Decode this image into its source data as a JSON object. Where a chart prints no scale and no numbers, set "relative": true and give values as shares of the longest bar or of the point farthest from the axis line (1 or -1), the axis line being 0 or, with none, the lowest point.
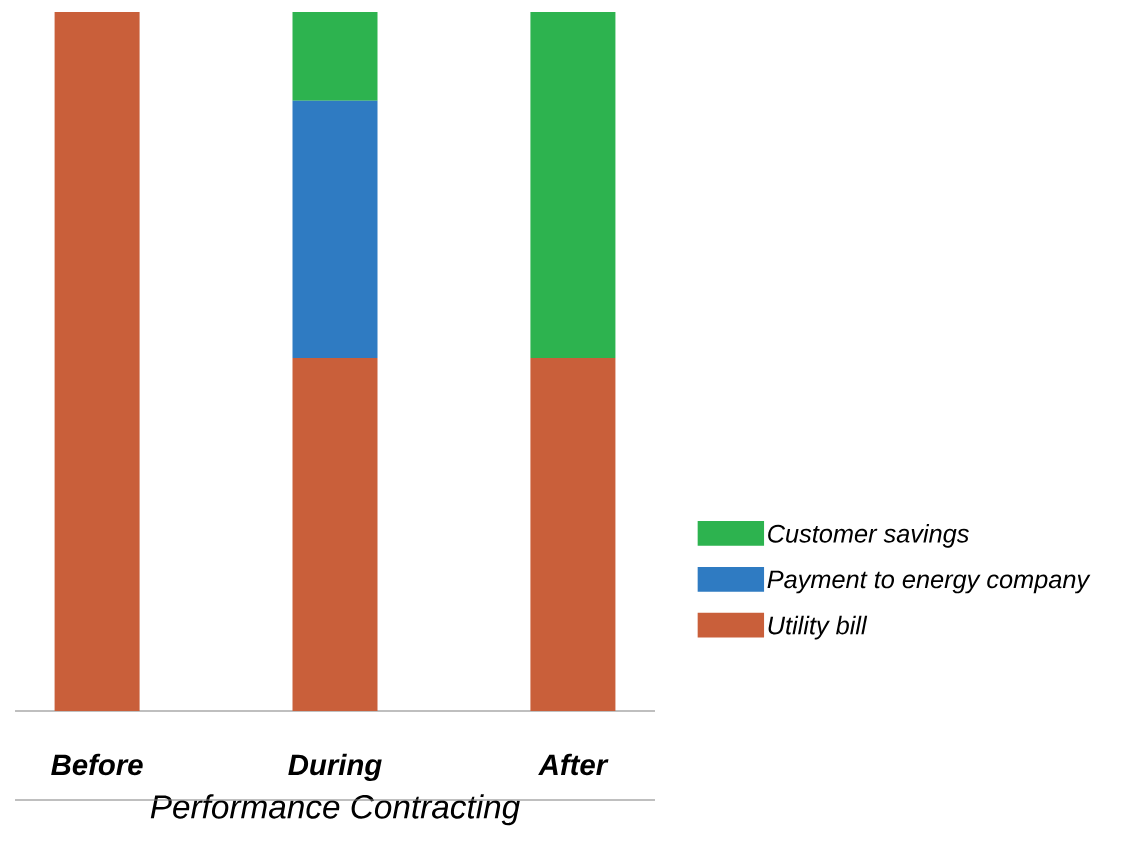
{
  "chart_data": {
    "type": "bar",
    "stacked": true,
    "relative": true,
    "xlabel": "Performance Contracting",
    "categories": [
      "Before",
      "During",
      "After"
    ],
    "series": [
      {
        "name": "Utility bill",
        "color": "#c95f3a",
        "values": [
          1,
          0.505,
          0.505
        ]
      },
      {
        "name": "Payment to energy company",
        "color": "#2f7bc2",
        "values": [
          null,
          0.368,
          null
        ]
      },
      {
        "name": "Customer savings",
        "color": "#2db34f",
        "values": [
          null,
          0.127,
          0.495
        ]
      }
    ],
    "legend": "right"
  }
}
